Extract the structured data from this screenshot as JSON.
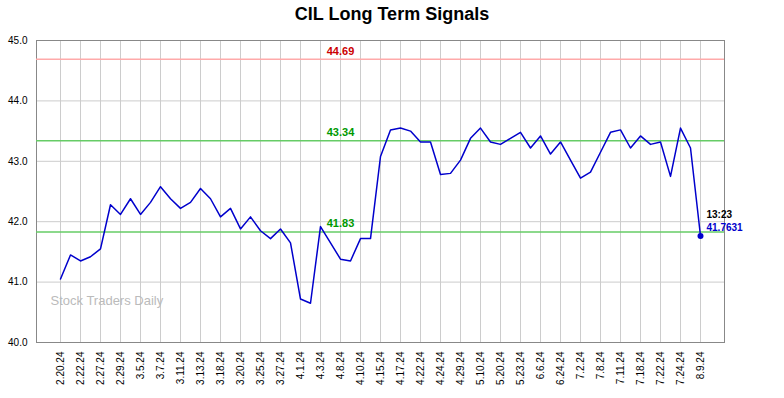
{
  "chart_data": {
    "type": "line",
    "title": "CIL Long Term Signals",
    "categories": [
      "2.20.24",
      null,
      "2.22.24",
      null,
      "2.27.24",
      null,
      "2.29.24",
      null,
      "3.5.24",
      null,
      "3.7.24",
      null,
      "3.11.24",
      null,
      "3.13.24",
      null,
      "3.18.24",
      null,
      "3.20.24",
      null,
      "3.25.24",
      null,
      "3.27.24",
      null,
      "4.1.24",
      null,
      "4.3.24",
      null,
      "4.8.24",
      null,
      "4.10.24",
      null,
      "4.15.24",
      null,
      "4.17.24",
      null,
      "4.22.24",
      null,
      "4.24.24",
      null,
      "4.29.24",
      null,
      "5.10.24",
      null,
      "5.20.24",
      null,
      "5.23.24",
      null,
      "6.6.24",
      null,
      "6.24.24",
      null,
      "7.2.24",
      null,
      "7.8.24",
      null,
      "7.11.24",
      null,
      "7.18.24",
      null,
      "7.22.24",
      null,
      "7.24.24",
      null,
      "8.9.24"
    ],
    "values": [
      41.05,
      41.45,
      41.35,
      41.42,
      41.55,
      42.28,
      42.12,
      42.38,
      42.12,
      42.32,
      42.58,
      42.38,
      42.22,
      42.32,
      42.55,
      42.38,
      42.08,
      42.22,
      41.88,
      42.08,
      41.85,
      41.72,
      41.88,
      41.65,
      40.72,
      40.65,
      41.92,
      41.65,
      41.38,
      41.35,
      41.72,
      41.72,
      43.08,
      43.52,
      43.55,
      43.5,
      43.32,
      43.32,
      42.78,
      42.8,
      43.02,
      43.38,
      43.55,
      43.32,
      43.28,
      43.38,
      43.48,
      43.22,
      43.42,
      43.12,
      43.32,
      43.02,
      42.72,
      42.82,
      43.15,
      43.48,
      43.52,
      43.22,
      43.42,
      43.28,
      43.32,
      42.75,
      43.55,
      43.22,
      41.7631
    ],
    "color": "#0000cc",
    "ylim": [
      40,
      45
    ],
    "yticks": [
      40,
      41,
      42,
      43,
      44,
      45
    ],
    "grid": true,
    "hlines": [
      {
        "y": 44.69,
        "color": "#ffaaaa",
        "label": "44.69",
        "label_color": "#cc0000"
      },
      {
        "y": 43.34,
        "color": "#66cc66",
        "label": "43.34",
        "label_color": "#009900"
      },
      {
        "y": 41.83,
        "color": "#66cc66",
        "label": "41.83",
        "label_color": "#009900"
      }
    ],
    "last_point_labels": [
      {
        "text": "13:23",
        "color": "#000000"
      },
      {
        "text": "41.7631",
        "color": "#0000cc"
      }
    ],
    "watermark": {
      "text": "Stock Traders Daily",
      "color": "#bbbbbb"
    }
  }
}
